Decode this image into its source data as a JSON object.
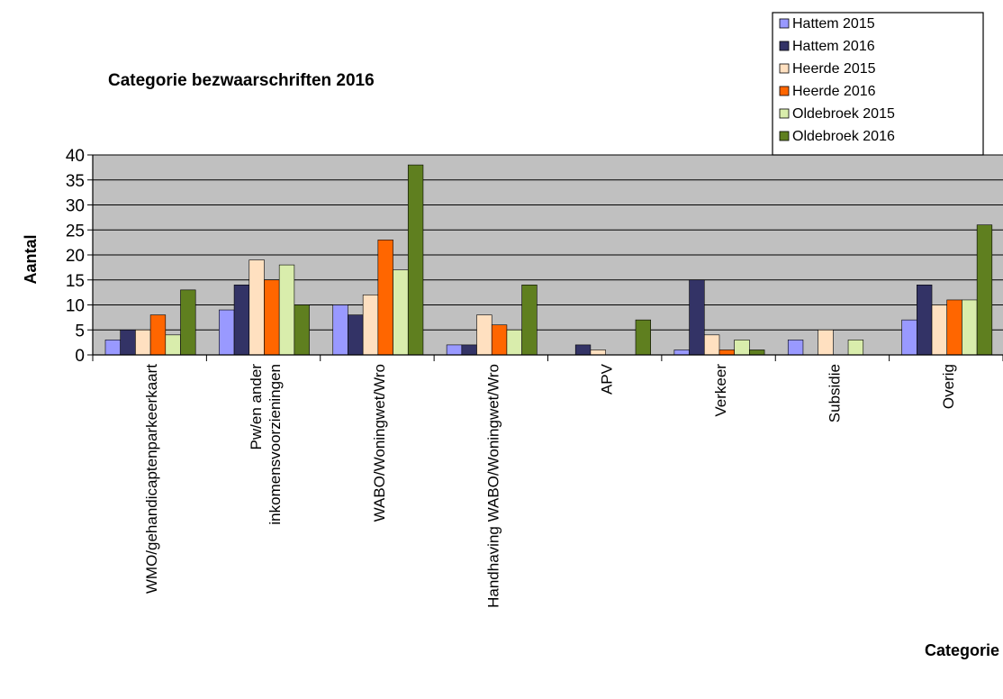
{
  "chart_data": {
    "type": "bar",
    "title": "Categorie bezwaarschriften 2016",
    "xlabel": "Categorie",
    "ylabel": "Aantal",
    "ylim": [
      0,
      40
    ],
    "yticks": [
      0,
      5,
      10,
      15,
      20,
      25,
      30,
      35,
      40
    ],
    "grid": true,
    "legend_position": "top-right",
    "categories": [
      [
        "WMO/gehandicaptenparkeerkaart"
      ],
      [
        "Pw/en ander",
        "inkomensvoorzieningen"
      ],
      [
        "WABO/Woningwet/Wro"
      ],
      [
        "Handhaving WABO/Woningwet/Wro"
      ],
      [
        "APV"
      ],
      [
        "Verkeer"
      ],
      [
        "Subsidie"
      ],
      [
        "Overig"
      ]
    ],
    "series": [
      {
        "name": "Hattem 2015",
        "color": "#9999ff",
        "values": [
          3,
          9,
          10,
          2,
          0,
          1,
          3,
          7
        ]
      },
      {
        "name": "Hattem 2016",
        "color": "#333366",
        "values": [
          5,
          14,
          8,
          2,
          2,
          15,
          0,
          14
        ]
      },
      {
        "name": "Heerde 2015",
        "color": "#ffe0c0",
        "values": [
          5,
          19,
          12,
          8,
          1,
          4,
          5,
          10
        ]
      },
      {
        "name": "Heerde 2016",
        "color": "#ff6600",
        "values": [
          8,
          15,
          23,
          6,
          0,
          1,
          0,
          11
        ]
      },
      {
        "name": "Oldebroek 2015",
        "color": "#d9edac",
        "values": [
          4,
          18,
          17,
          5,
          0,
          3,
          3,
          11
        ]
      },
      {
        "name": "Oldebroek 2016",
        "color": "#5f7f1f",
        "values": [
          13,
          10,
          38,
          14,
          7,
          1,
          0,
          26
        ]
      }
    ]
  }
}
